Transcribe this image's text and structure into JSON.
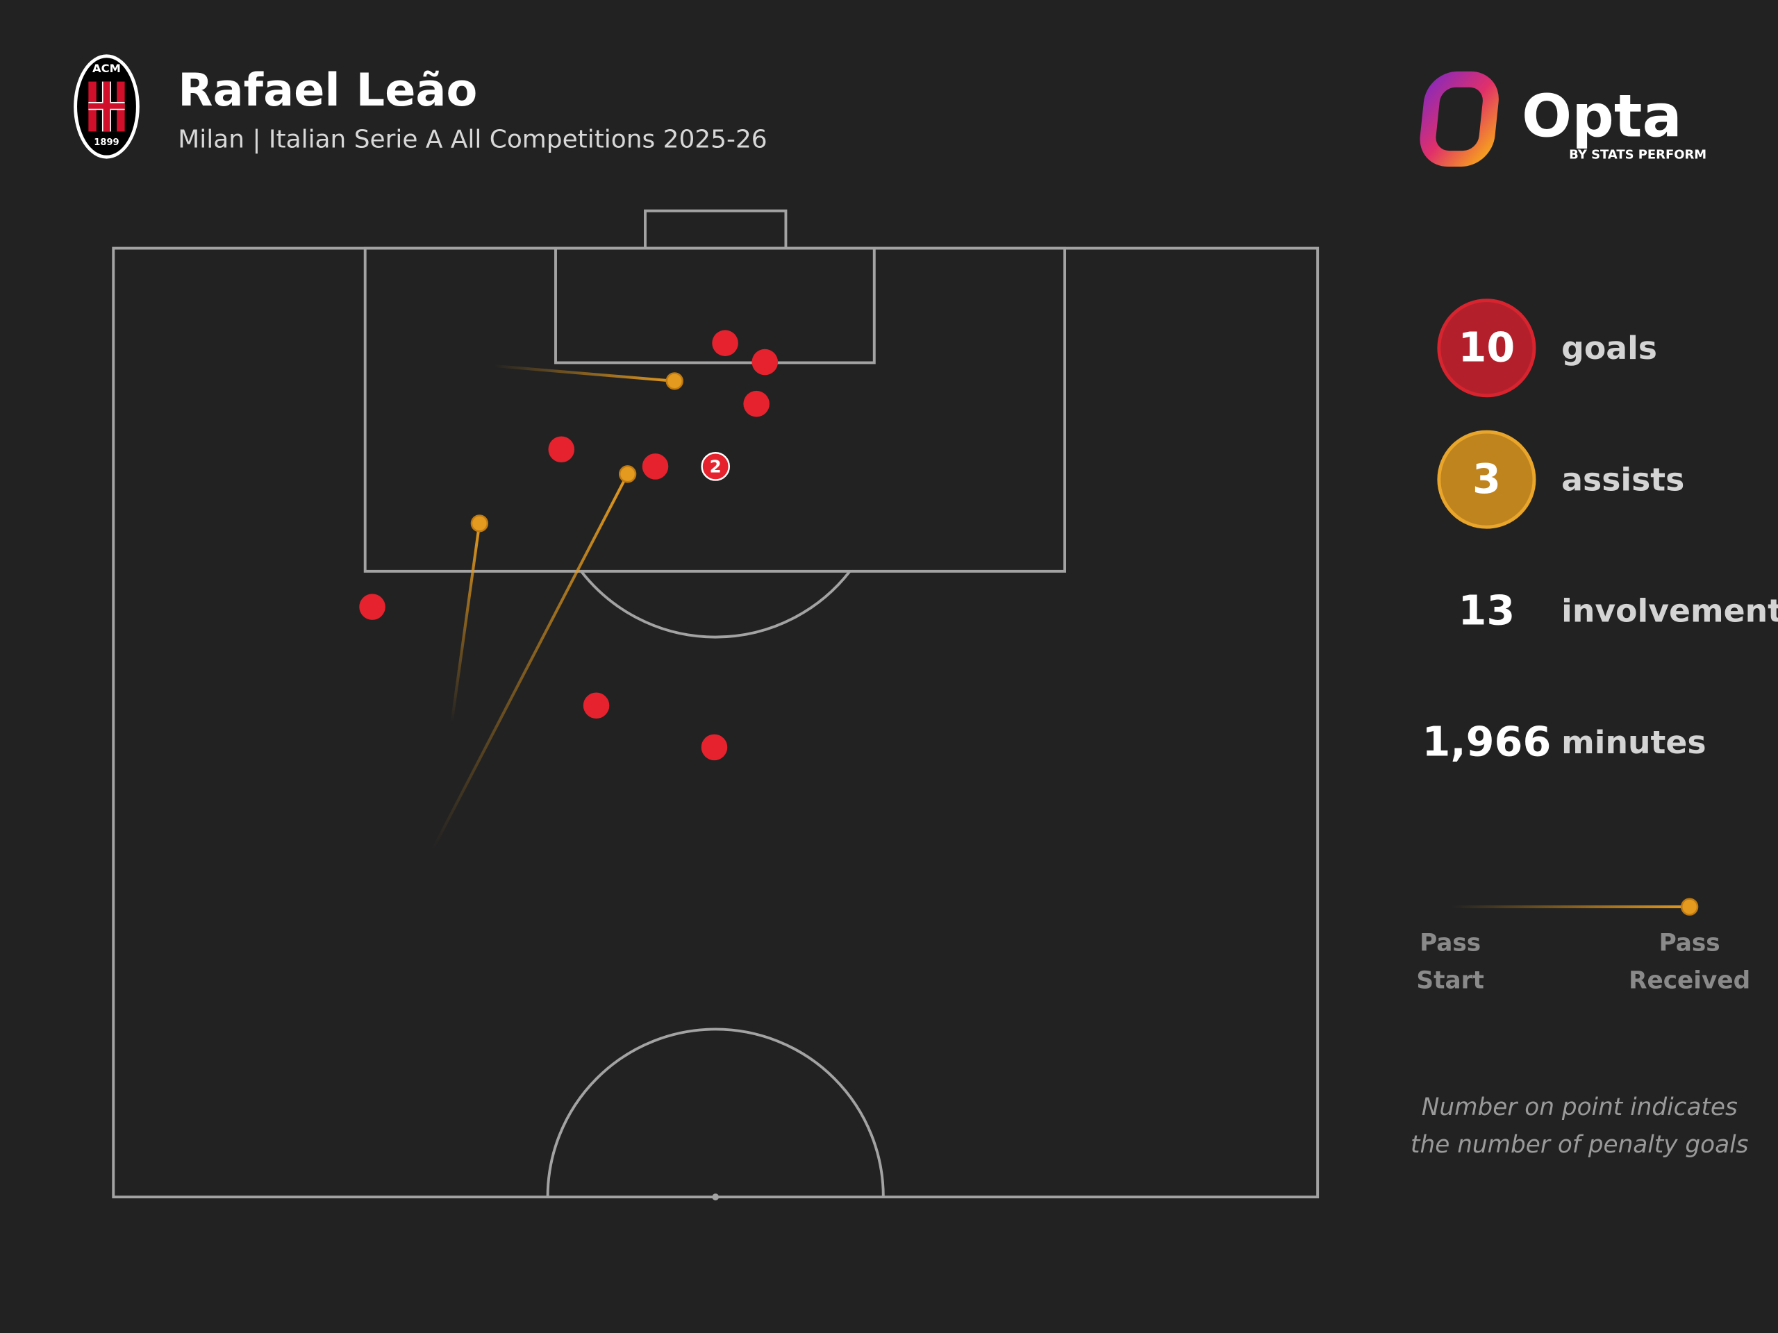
{
  "header": {
    "title": "Rafael Leão",
    "subtitle": "Milan | Italian Serie A All Competitions 2025-26",
    "badge": {
      "top": "ACM",
      "year": "1899"
    }
  },
  "brand": {
    "name": "Opta",
    "by_line": "BY STATS PERFORM"
  },
  "chart_data": {
    "type": "scatter",
    "xlim": [
      0,
      100
    ],
    "ylim": [
      50,
      100
    ],
    "series": [
      {
        "name": "goals",
        "color": "#e5222d",
        "x": [
          50.8,
          54.1,
          53.4,
          37.2,
          45.0,
          50.0,
          21.5,
          40.1,
          49.9
        ],
        "y": [
          95.0,
          94.0,
          91.8,
          89.4,
          88.5,
          88.5,
          81.1,
          75.9,
          73.7
        ],
        "labels": [
          null,
          null,
          null,
          null,
          null,
          2,
          null,
          null,
          null
        ]
      },
      {
        "name": "assists",
        "color": "#e39a1f",
        "x_start": [
          31.6,
          28.1,
          26.5
        ],
        "y_start": [
          93.8,
          75.0,
          68.3
        ],
        "x": [
          46.6,
          30.4,
          42.7
        ],
        "y": [
          93.0,
          85.5,
          88.1
        ]
      }
    ]
  },
  "stats": [
    {
      "value": 10,
      "label": "goals",
      "color": "#b3202b"
    },
    {
      "value": 3,
      "label": "assists",
      "color": "#c0841f"
    },
    {
      "value": 13,
      "label": "involvements"
    },
    {
      "value": 1966,
      "value_label": "1,966",
      "label": "minutes"
    }
  ],
  "legend": {
    "start": [
      "Pass",
      "Start"
    ],
    "end": [
      "Pass",
      "Received"
    ]
  },
  "note": [
    "Number on point indicates",
    "the number of penalty goals"
  ]
}
